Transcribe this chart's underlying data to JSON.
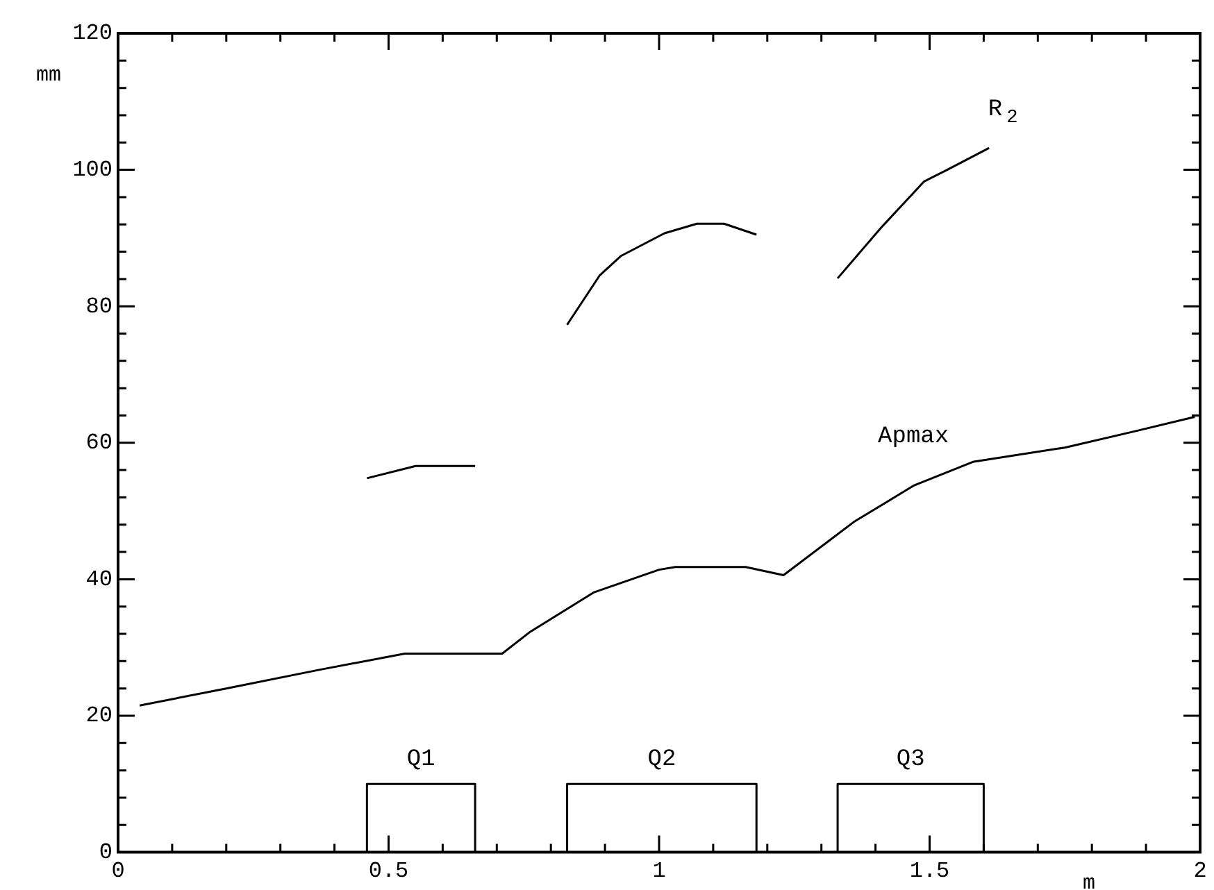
{
  "chart_data": {
    "type": "line",
    "xlabel": "m",
    "ylabel": "mm",
    "xlim": [
      0,
      2
    ],
    "ylim": [
      0,
      120
    ],
    "xticks": [
      0,
      {
        "value": 0.1,
        "label": null
      },
      {
        "value": 0.2,
        "label": null
      },
      {
        "value": 0.3,
        "label": null
      },
      {
        "value": 0.4,
        "label": null
      },
      0.5,
      {
        "value": 0.6,
        "label": null
      },
      {
        "value": 0.7,
        "label": null
      },
      {
        "value": 0.8,
        "label": null
      },
      {
        "value": 0.9,
        "label": null
      },
      1,
      {
        "value": 1.1,
        "label": null
      },
      {
        "value": 1.2,
        "label": null
      },
      {
        "value": 1.3,
        "label": null
      },
      {
        "value": 1.4,
        "label": null
      },
      1.5,
      {
        "value": 1.6,
        "label": null
      },
      {
        "value": 1.7,
        "label": null
      },
      {
        "value": 1.8,
        "label": null
      },
      {
        "value": 1.9,
        "label": null
      },
      2
    ],
    "yticks": [
      0,
      {
        "value": 4,
        "label": null
      },
      {
        "value": 8,
        "label": null
      },
      {
        "value": 12,
        "label": null
      },
      {
        "value": 16,
        "label": null
      },
      20,
      {
        "value": 24,
        "label": null
      },
      {
        "value": 28,
        "label": null
      },
      {
        "value": 32,
        "label": null
      },
      {
        "value": 36,
        "label": null
      },
      40,
      {
        "value": 44,
        "label": null
      },
      {
        "value": 48,
        "label": null
      },
      {
        "value": 52,
        "label": null
      },
      {
        "value": 56,
        "label": null
      },
      60,
      {
        "value": 64,
        "label": null
      },
      {
        "value": 68,
        "label": null
      },
      {
        "value": 72,
        "label": null
      },
      {
        "value": 76,
        "label": null
      },
      80,
      {
        "value": 84,
        "label": null
      },
      {
        "value": 88,
        "label": null
      },
      {
        "value": 92,
        "label": null
      },
      {
        "value": 96,
        "label": null
      },
      100,
      {
        "value": 104,
        "label": null
      },
      {
        "value": 108,
        "label": null
      },
      {
        "value": 112,
        "label": null
      },
      {
        "value": 116,
        "label": null
      },
      120
    ],
    "grid": false,
    "legend": false,
    "marker": "none",
    "line_style": "solid",
    "series": [
      {
        "name": "Apmax",
        "color": "#000000",
        "x": [
          0.04,
          0.2,
          0.37,
          0.53,
          0.71,
          0.76,
          0.88,
          1.0,
          1.03,
          1.16,
          1.23,
          1.36,
          1.47,
          1.58,
          1.75,
          1.88,
          1.99
        ],
        "values": [
          21.5,
          24,
          26.7,
          29.1,
          29.1,
          32.2,
          38.1,
          41.4,
          41.8,
          41.8,
          40.6,
          48.4,
          53.7,
          57.2,
          59.3,
          61.7,
          63.8
        ]
      },
      {
        "color": "#000000",
        "x": [
          0.46,
          0.55,
          0.66
        ],
        "values": [
          54.8,
          56.6,
          56.6
        ]
      },
      {
        "name": "R$_{2}$",
        "color": "#000000",
        "x": [
          0.83,
          0.89,
          0.93,
          1.01,
          1.07,
          1.12,
          1.18,
          1.25,
          1.33,
          1.41,
          1.49,
          1.53,
          1.61
        ],
        "values": [
          77.3,
          84.5,
          87.4,
          90.7,
          92.1,
          92.1,
          90.5,
          null,
          84.1,
          91.5,
          98.3,
          99.9,
          103.2
        ]
      },
      {
        "name": "Q1",
        "color": "#000000",
        "x": [
          0.46,
          0.46,
          0.66,
          0.66
        ],
        "values": [
          0,
          10,
          10,
          0
        ]
      },
      {
        "name": "Q2",
        "color": "#000000",
        "x": [
          0.83,
          0.83,
          1.18,
          1.18
        ],
        "values": [
          0,
          10,
          10,
          0
        ]
      },
      {
        "name": "Q3",
        "color": "#000000",
        "x": [
          1.33,
          1.33,
          1.6,
          1.6
        ],
        "values": [
          0,
          10,
          10,
          0
        ]
      }
    ]
  }
}
